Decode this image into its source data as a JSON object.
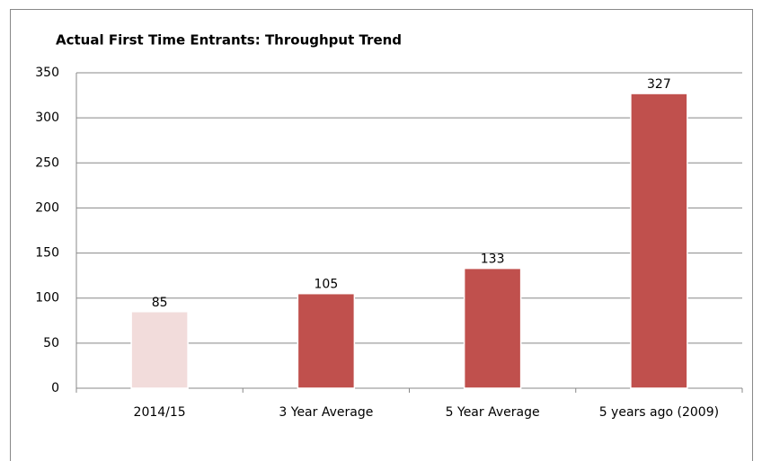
{
  "chart_data": {
    "type": "bar",
    "title": "Actual First Time Entrants: Throughput Trend",
    "categories": [
      "2014/15",
      "3 Year Average",
      "5 Year Average",
      "5 years ago (2009)"
    ],
    "values": [
      85,
      105,
      133,
      327
    ],
    "colors": [
      "#f2dcdb",
      "#c0504d",
      "#c0504d",
      "#c0504d"
    ],
    "ylim": [
      0,
      350
    ],
    "yticks": [
      0,
      50,
      100,
      150,
      200,
      250,
      300,
      350
    ],
    "grid": true
  }
}
